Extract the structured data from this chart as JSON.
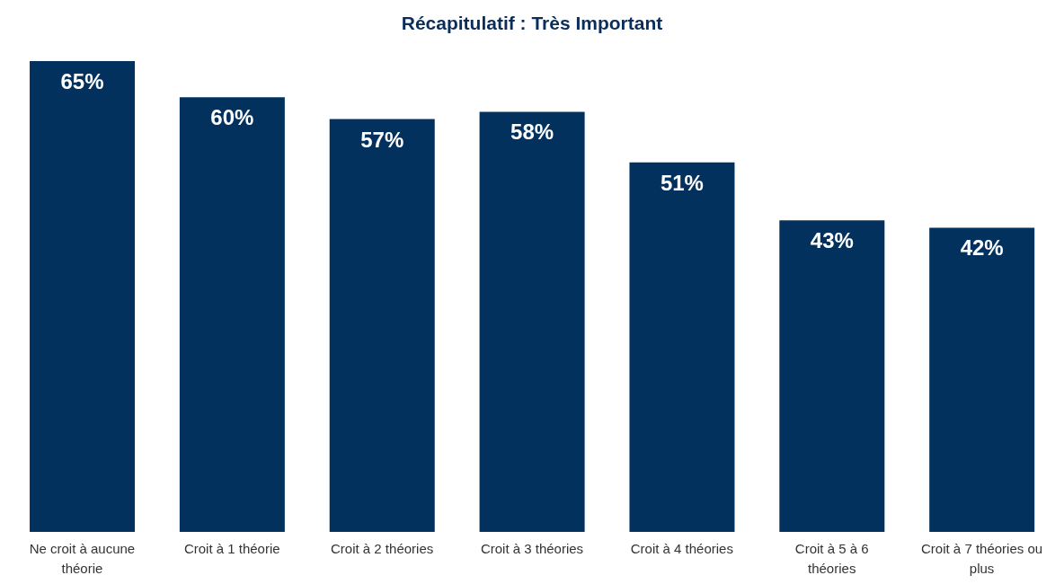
{
  "chart_data": {
    "type": "bar",
    "title": "Récapitulatif : Très Important",
    "categories": [
      "Ne croit à aucune théorie",
      "Croit à 1 théorie",
      "Croit à 2 théories",
      "Croit à 3 théories",
      "Croit à 4 théories",
      "Croit à 5 à 6 théories",
      "Croit à 7 théories ou plus"
    ],
    "values": [
      65,
      60,
      57,
      58,
      51,
      43,
      42
    ],
    "value_labels": [
      "65%",
      "60%",
      "57%",
      "58%",
      "51%",
      "43%",
      "42%"
    ],
    "color": "#03315e",
    "tick_labels": "x",
    "grid": false,
    "legend": false
  }
}
